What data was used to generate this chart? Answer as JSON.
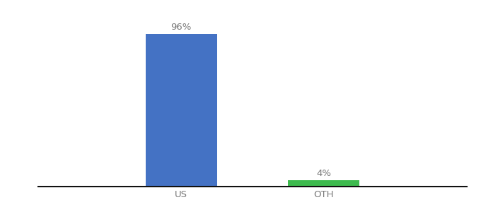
{
  "categories": [
    "US",
    "OTH"
  ],
  "values": [
    96,
    4
  ],
  "bar_colors": [
    "#4472c4",
    "#3dba4e"
  ],
  "value_labels": [
    "96%",
    "4%"
  ],
  "background_color": "#ffffff",
  "text_color": "#777777",
  "ylim": [
    0,
    108
  ],
  "bar_width": 0.5,
  "label_fontsize": 9.5,
  "tick_fontsize": 9.5,
  "axis_line_color": "#111111",
  "xlim": [
    -0.5,
    2.5
  ],
  "x_positions": [
    0.5,
    1.5
  ]
}
